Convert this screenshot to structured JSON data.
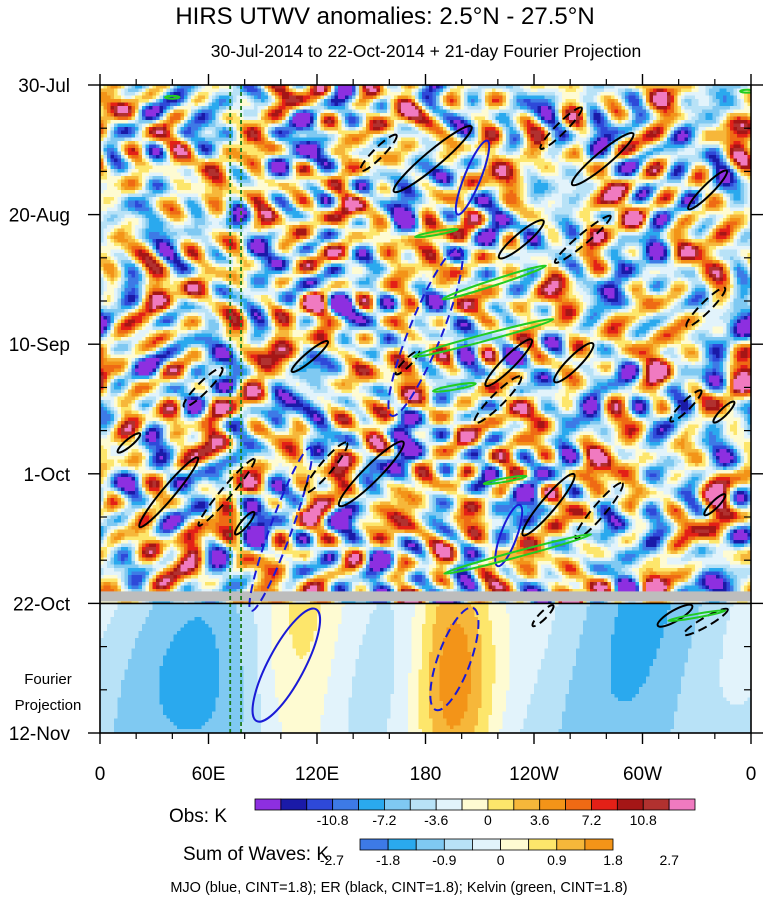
{
  "chart_data": {
    "type": "heatmap",
    "title": "HIRS UTWV anomalies: 2.5°N - 27.5°N",
    "subtitle": "30-Jul-2014 to 22-Oct-2014 + 21-day Fourier Projection",
    "x_axis": {
      "ticks": [
        "0",
        "60E",
        "120E",
        "180",
        "120W",
        "60W",
        "0"
      ],
      "tick_values_deg_east": [
        0,
        60,
        120,
        180,
        240,
        300,
        360
      ],
      "range": [
        0,
        360
      ]
    },
    "y_axis": {
      "ticks": [
        "30-Jul",
        "20-Aug",
        "10-Sep",
        "1-Oct",
        "22-Oct",
        "12-Nov"
      ],
      "tick_values_day": [
        0,
        21,
        42,
        63,
        84,
        105
      ],
      "range_day": [
        0,
        105
      ],
      "reversed": true
    },
    "projection_start_day": 84,
    "projection_label": "Fourier\nProjection",
    "reference_lines_lon": [
      72,
      78
    ],
    "obs_colorbar": {
      "label": "Obs: K",
      "tick_labels": [
        "-10.8",
        "-7.2",
        "-3.6",
        "0",
        "3.6",
        "7.2",
        "10.8"
      ],
      "colors": [
        "#8d2fe0",
        "#1a1aa8",
        "#2e49d9",
        "#3d7ae6",
        "#2aa9ee",
        "#7fc9f2",
        "#b8e2f7",
        "#e2f3fb",
        "#fefbd2",
        "#fde66b",
        "#f6b73a",
        "#f39418",
        "#ef6a14",
        "#e32017",
        "#a51616",
        "#b1312f",
        "#f07ac0"
      ]
    },
    "sum_colorbar": {
      "label": "Sum of Waves: K",
      "tick_labels": [
        "-2.7",
        "-1.8",
        "-0.9",
        "0",
        "0.9",
        "1.8",
        "2.7"
      ],
      "colors": [
        "#3d7ae6",
        "#2aa9ee",
        "#7fc9f2",
        "#b8e2f7",
        "#e2f3fb",
        "#fefbd2",
        "#fde66b",
        "#f6b73a",
        "#f39418"
      ]
    },
    "footer": "MJO (blue, CINT=1.8); ER (black, CINT=1.8); Kelvin (green, CINT=1.8)",
    "series": [
      {
        "name": "MJO",
        "color": "#1a1ad6",
        "contour_interval": 1.8
      },
      {
        "name": "ER",
        "color": "#000000",
        "contour_interval": 1.8
      },
      {
        "name": "Kelvin",
        "color": "#22cc22",
        "contour_interval": 1.8
      }
    ],
    "contours": [
      {
        "wave": "MJO",
        "sign": 1,
        "lon": 206,
        "day": 15,
        "len": 22,
        "wid": 4.5,
        "ang": -68
      },
      {
        "wave": "MJO",
        "sign": -1,
        "lon": 180,
        "day": 40,
        "len": 50,
        "wid": 9,
        "ang": -68
      },
      {
        "wave": "MJO",
        "sign": -1,
        "lon": 100,
        "day": 72,
        "len": 48,
        "wid": 6,
        "ang": -70
      },
      {
        "wave": "MJO",
        "sign": 1,
        "lon": 103,
        "day": 94,
        "len": 35,
        "wid": 10,
        "ang": -62
      },
      {
        "wave": "MJO",
        "sign": -1,
        "lon": 196,
        "day": 93,
        "len": 30,
        "wid": 9,
        "ang": -70
      },
      {
        "wave": "MJO",
        "sign": 1,
        "lon": 226,
        "day": 73,
        "len": 18,
        "wid": 4.5,
        "ang": -70
      },
      {
        "wave": "ER",
        "sign": 1,
        "lon": 184,
        "day": 12,
        "len": 28,
        "wid": 4.5,
        "ang": -40
      },
      {
        "wave": "ER",
        "sign": -1,
        "lon": 154,
        "day": 11,
        "len": 14,
        "wid": 2.8,
        "ang": -45
      },
      {
        "wave": "ER",
        "sign": -1,
        "lon": 255,
        "day": 7,
        "len": 16,
        "wid": 2.8,
        "ang": -45
      },
      {
        "wave": "ER",
        "sign": 1,
        "lon": 278,
        "day": 12,
        "len": 22,
        "wid": 4,
        "ang": -40
      },
      {
        "wave": "ER",
        "sign": -1,
        "lon": 267,
        "day": 25,
        "len": 20,
        "wid": 2.8,
        "ang": -40
      },
      {
        "wave": "ER",
        "sign": 1,
        "lon": 233,
        "day": 25,
        "len": 16,
        "wid": 3.5,
        "ang": -40
      },
      {
        "wave": "ER",
        "sign": 1,
        "lon": 336,
        "day": 17,
        "len": 15,
        "wid": 2.8,
        "ang": -45
      },
      {
        "wave": "ER",
        "sign": -1,
        "lon": 335,
        "day": 36,
        "len": 15,
        "wid": 2.8,
        "ang": -45
      },
      {
        "wave": "ER",
        "sign": 1,
        "lon": 226,
        "day": 45,
        "len": 18,
        "wid": 3.5,
        "ang": -45
      },
      {
        "wave": "ER",
        "sign": -1,
        "lon": 220,
        "day": 51,
        "len": 18,
        "wid": 3.5,
        "ang": -45
      },
      {
        "wave": "ER",
        "sign": 1,
        "lon": 262,
        "day": 45,
        "len": 15,
        "wid": 3.5,
        "ang": -45
      },
      {
        "wave": "ER",
        "sign": 1,
        "lon": 116,
        "day": 44,
        "len": 13,
        "wid": 2.5,
        "ang": -40
      },
      {
        "wave": "ER",
        "sign": -1,
        "lon": 170,
        "day": 45,
        "len": 9,
        "wid": 2,
        "ang": -45
      },
      {
        "wave": "ER",
        "sign": -1,
        "lon": 57,
        "day": 49,
        "len": 15,
        "wid": 3,
        "ang": -45
      },
      {
        "wave": "ER",
        "sign": 1,
        "lon": 38,
        "day": 66,
        "len": 25,
        "wid": 3.5,
        "ang": -50
      },
      {
        "wave": "ER",
        "sign": -1,
        "lon": 70,
        "day": 66,
        "len": 24,
        "wid": 3,
        "ang": -50
      },
      {
        "wave": "ER",
        "sign": -1,
        "lon": 125,
        "day": 62,
        "len": 18,
        "wid": 3.5,
        "ang": -50
      },
      {
        "wave": "ER",
        "sign": 1,
        "lon": 150,
        "day": 63,
        "len": 25,
        "wid": 4.5,
        "ang": -45
      },
      {
        "wave": "ER",
        "sign": 1,
        "lon": 16,
        "day": 58,
        "len": 8,
        "wid": 2,
        "ang": -40
      },
      {
        "wave": "ER",
        "sign": 1,
        "lon": 80,
        "day": 71,
        "len": 8,
        "wid": 2,
        "ang": -50
      },
      {
        "wave": "ER",
        "sign": 1,
        "lon": 248,
        "day": 68,
        "len": 22,
        "wid": 4,
        "ang": -50
      },
      {
        "wave": "ER",
        "sign": -1,
        "lon": 276,
        "day": 69,
        "len": 20,
        "wid": 3.5,
        "ang": -50
      },
      {
        "wave": "ER",
        "sign": 1,
        "lon": 345,
        "day": 53,
        "len": 8,
        "wid": 2,
        "ang": -45
      },
      {
        "wave": "ER",
        "sign": -1,
        "lon": 324,
        "day": 52,
        "len": 12,
        "wid": 2.5,
        "ang": -45
      },
      {
        "wave": "ER",
        "sign": 1,
        "lon": 340,
        "day": 68,
        "len": 8,
        "wid": 2,
        "ang": -45
      },
      {
        "wave": "ER",
        "sign": 1,
        "lon": 318,
        "day": 86,
        "len": 11,
        "wid": 3,
        "ang": -30
      },
      {
        "wave": "ER",
        "sign": -1,
        "lon": 335,
        "day": 87,
        "len": 14,
        "wid": 2.5,
        "ang": -30
      },
      {
        "wave": "ER",
        "sign": -1,
        "lon": 245,
        "day": 86,
        "len": 8,
        "wid": 2,
        "ang": -45
      },
      {
        "wave": "Kelvin",
        "sign": 1,
        "lon": 218,
        "day": 32,
        "len": 30,
        "wid": 1.6,
        "ang": -18
      },
      {
        "wave": "Kelvin",
        "sign": 1,
        "lon": 212,
        "day": 41,
        "len": 40,
        "wid": 1.8,
        "ang": -15
      },
      {
        "wave": "Kelvin",
        "sign": 1,
        "lon": 196,
        "day": 49,
        "len": 12,
        "wid": 1.2,
        "ang": -10
      },
      {
        "wave": "Kelvin",
        "sign": 1,
        "lon": 186,
        "day": 24,
        "len": 12,
        "wid": 1,
        "ang": -10
      },
      {
        "wave": "Kelvin",
        "sign": 1,
        "lon": 231,
        "day": 76,
        "len": 42,
        "wid": 1.6,
        "ang": -15
      },
      {
        "wave": "Kelvin",
        "sign": 1,
        "lon": 224,
        "day": 64,
        "len": 12,
        "wid": 1,
        "ang": -10
      },
      {
        "wave": "Kelvin",
        "sign": 1,
        "lon": 330,
        "day": 86,
        "len": 16,
        "wid": 1,
        "ang": -10
      },
      {
        "wave": "Kelvin",
        "sign": 1,
        "lon": 40,
        "day": 2,
        "len": 4,
        "wid": 0.8,
        "ang": 0
      },
      {
        "wave": "Kelvin",
        "sign": 1,
        "lon": 358,
        "day": 1,
        "len": 4,
        "wid": 0.8,
        "ang": 0
      }
    ]
  }
}
